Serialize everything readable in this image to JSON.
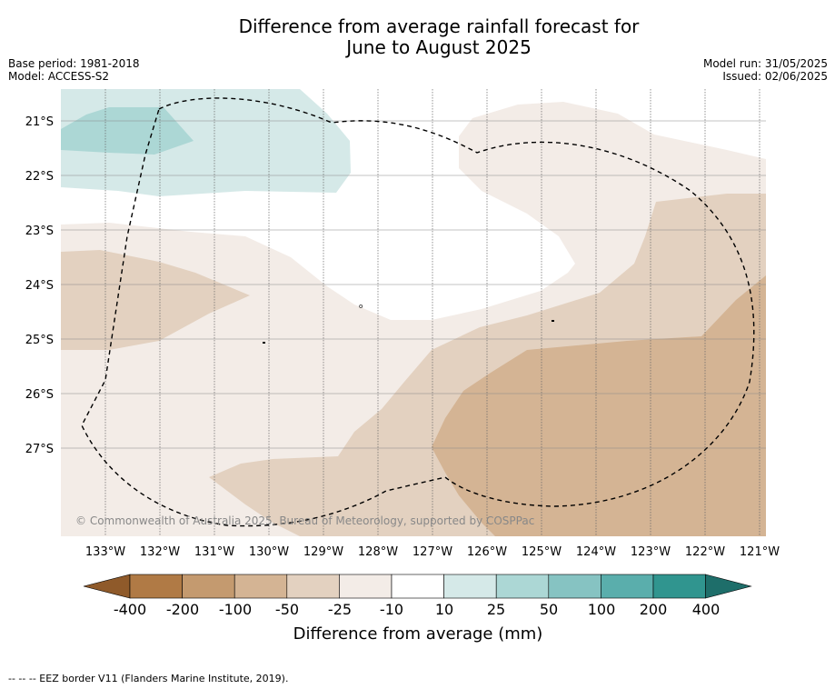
{
  "title_line1": "Difference from average rainfall forecast for",
  "title_line2": "June to August 2025",
  "base_period": "Base period: 1981-2018",
  "model": "Model: ACCESS-S2",
  "model_run": "Model run: 31/05/2025",
  "issued": "Issued: 02/06/2025",
  "copyright": "© Commonwealth of Australia 2025, Bureau of Meteorology, supported by COSPPac",
  "lat_labels": [
    "21°S",
    "22°S",
    "23°S",
    "24°S",
    "25°S",
    "26°S",
    "27°S"
  ],
  "lon_labels": [
    "133°W",
    "132°W",
    "131°W",
    "130°W",
    "129°W",
    "128°W",
    "127°W",
    "126°W",
    "125°W",
    "124°W",
    "123°W",
    "122°W",
    "121°W"
  ],
  "colorbar": {
    "ticks": [
      "-400",
      "-200",
      "-100",
      "-50",
      "-25",
      "-10",
      "10",
      "25",
      "50",
      "100",
      "200",
      "400"
    ],
    "label": "Difference from average (mm)",
    "colors": [
      "#8f5a2a",
      "#b07a45",
      "#c49a6f",
      "#d4b494",
      "#e3d1c0",
      "#f3ece7",
      "#ffffff",
      "#d5e9e8",
      "#acd7d5",
      "#86c3c2",
      "#5aaeac",
      "#30958f",
      "#1e6e6a"
    ]
  },
  "footnote": "-- -- -- EEZ border V11 (Flanders Marine Institute, 2019)."
}
